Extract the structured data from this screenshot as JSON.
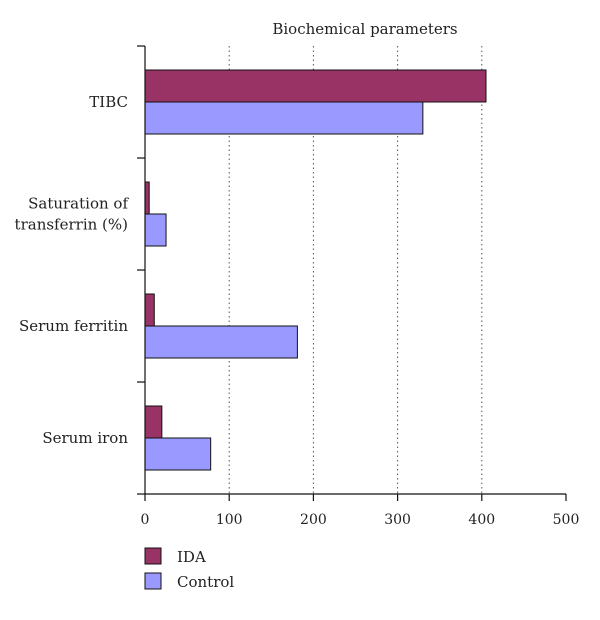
{
  "chart_data": {
    "type": "bar",
    "orientation": "horizontal",
    "title": "Biochemical parameters",
    "categories": [
      [
        "TIBC"
      ],
      [
        "Saturation of",
        "transferrin (%)"
      ],
      [
        "Serum ferritin"
      ],
      [
        "Serum iron"
      ]
    ],
    "series": [
      {
        "name": "IDA",
        "color": "#993366",
        "values": [
          405,
          5,
          11,
          20
        ]
      },
      {
        "name": "Control",
        "color": "#9999ff",
        "values": [
          330,
          25,
          181,
          78
        ]
      }
    ],
    "xlim": [
      0,
      500
    ],
    "xticks": [
      0,
      100,
      200,
      300,
      400,
      500
    ],
    "grid": "vertical dotted",
    "legend": "bottom-left"
  }
}
